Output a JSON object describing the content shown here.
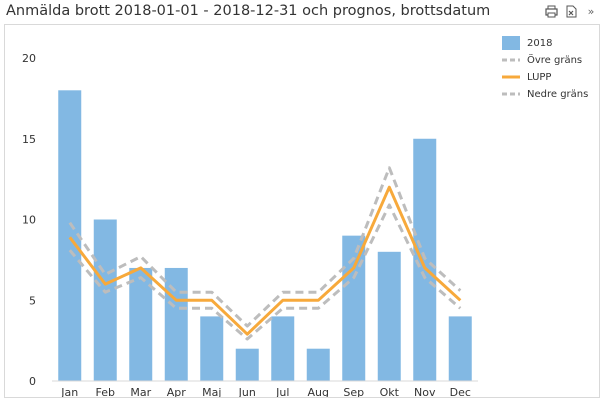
{
  "title": "Anmälda brott 2018-01-01 - 2018-12-31 och prognos, brottsdatum",
  "toolbar": {
    "icons": [
      "export-icon",
      "excel-icon",
      "more-icon"
    ],
    "more_glyph": "»"
  },
  "colors": {
    "bar": "#82b8e3",
    "bar_stroke": "#6aa6d6",
    "lupp": "#f7a93b",
    "bounds": "#bdbdbd",
    "axis": "#d9d9d9",
    "text": "#333333"
  },
  "chart_data": {
    "type": "bar",
    "title": "Anmälda brott 2018-01-01 - 2018-12-31 och prognos, brottsdatum",
    "categories": [
      "Jan",
      "Feb",
      "Mar",
      "Apr",
      "Maj",
      "Jun",
      "Jul",
      "Aug",
      "Sep",
      "Okt",
      "Nov",
      "Dec"
    ],
    "ylim": [
      0,
      20
    ],
    "yticks": [
      0,
      5,
      10,
      15,
      20
    ],
    "grid": false,
    "legend_position": "right",
    "series": [
      {
        "name": "2018",
        "kind": "bar",
        "values": [
          18,
          10,
          7,
          7,
          4,
          2,
          4,
          2,
          9,
          8,
          15,
          4
        ]
      },
      {
        "name": "Övre gräns",
        "kind": "line-dashed",
        "values": [
          9.8,
          6.6,
          7.7,
          5.5,
          5.5,
          3.4,
          5.5,
          5.5,
          7.6,
          13.2,
          7.6,
          5.6
        ]
      },
      {
        "name": "LUPP",
        "kind": "line",
        "values": [
          8.9,
          6.0,
          7.0,
          5.0,
          5.0,
          2.9,
          5.0,
          5.0,
          7.0,
          12.0,
          7.0,
          5.0
        ]
      },
      {
        "name": "Nedre gräns",
        "kind": "line-dashed",
        "values": [
          8.1,
          5.5,
          6.4,
          4.5,
          4.5,
          2.6,
          4.5,
          4.5,
          6.4,
          10.9,
          6.4,
          4.5
        ]
      }
    ]
  }
}
